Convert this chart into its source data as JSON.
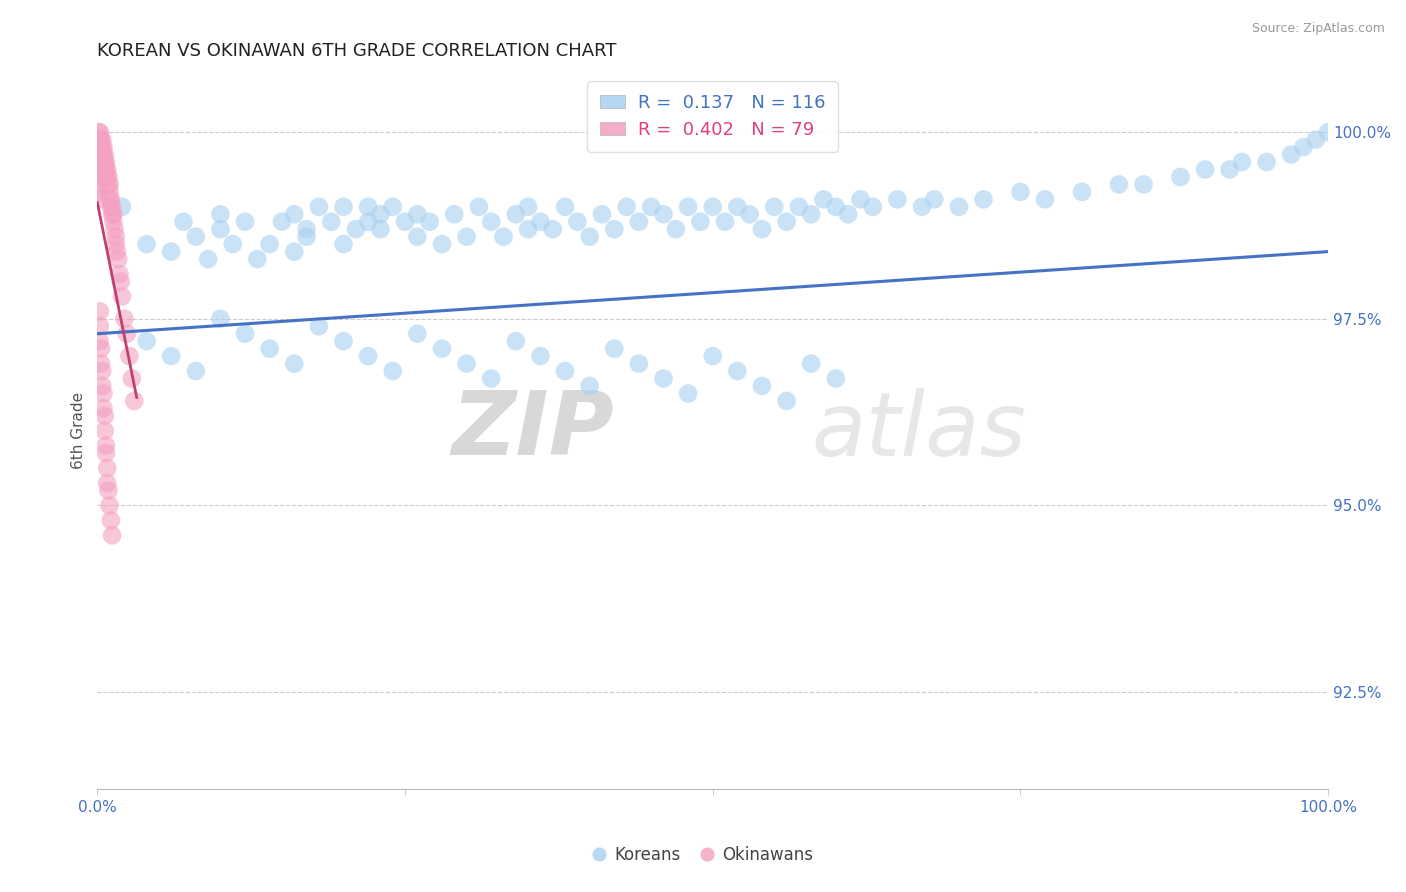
{
  "title": "KOREAN VS OKINAWAN 6TH GRADE CORRELATION CHART",
  "source_text": "Source: ZipAtlas.com",
  "ylabel": "6th Grade",
  "xlim": [
    0.0,
    1.0
  ],
  "ylim": [
    0.912,
    1.008
  ],
  "yticks": [
    0.925,
    0.95,
    0.975,
    1.0
  ],
  "ytick_labels": [
    "92.5%",
    "95.0%",
    "97.5%",
    "100.0%"
  ],
  "blue_color": "#A8D0F0",
  "pink_color": "#F4A0C0",
  "trendline_color": "#4472C4",
  "pink_trendline_color": "#C04070",
  "background_color": "#FFFFFF",
  "grid_color": "#CCCCCC",
  "legend_blue_R": "0.137",
  "legend_blue_N": "116",
  "legend_pink_R": "0.402",
  "legend_pink_N": "79",
  "legend_label_blue": "Koreans",
  "legend_label_pink": "Okinawans",
  "watermark_text": "ZIPatlas",
  "title_fontsize": 13,
  "axis_label_fontsize": 11,
  "tick_fontsize": 11,
  "blue_scatter_x": [
    0.02,
    0.04,
    0.06,
    0.07,
    0.08,
    0.09,
    0.1,
    0.1,
    0.11,
    0.12,
    0.13,
    0.14,
    0.15,
    0.16,
    0.16,
    0.17,
    0.17,
    0.18,
    0.19,
    0.2,
    0.2,
    0.21,
    0.22,
    0.22,
    0.23,
    0.23,
    0.24,
    0.25,
    0.26,
    0.26,
    0.27,
    0.28,
    0.29,
    0.3,
    0.31,
    0.32,
    0.33,
    0.34,
    0.35,
    0.35,
    0.36,
    0.37,
    0.38,
    0.39,
    0.4,
    0.41,
    0.42,
    0.43,
    0.44,
    0.45,
    0.46,
    0.47,
    0.48,
    0.49,
    0.5,
    0.51,
    0.52,
    0.53,
    0.54,
    0.55,
    0.56,
    0.57,
    0.58,
    0.59,
    0.6,
    0.61,
    0.62,
    0.63,
    0.65,
    0.67,
    0.68,
    0.7,
    0.72,
    0.75,
    0.77,
    0.8,
    0.83,
    0.85,
    0.88,
    0.9,
    0.92,
    0.93,
    0.95,
    0.97,
    0.98,
    0.99,
    1.0,
    0.04,
    0.06,
    0.08,
    0.1,
    0.12,
    0.14,
    0.16,
    0.18,
    0.2,
    0.22,
    0.24,
    0.26,
    0.28,
    0.3,
    0.32,
    0.34,
    0.36,
    0.38,
    0.4,
    0.42,
    0.44,
    0.46,
    0.48,
    0.5,
    0.52,
    0.54,
    0.56,
    0.58,
    0.6
  ],
  "blue_scatter_y": [
    0.99,
    0.985,
    0.984,
    0.988,
    0.986,
    0.983,
    0.987,
    0.989,
    0.985,
    0.988,
    0.983,
    0.985,
    0.988,
    0.984,
    0.989,
    0.987,
    0.986,
    0.99,
    0.988,
    0.985,
    0.99,
    0.987,
    0.988,
    0.99,
    0.989,
    0.987,
    0.99,
    0.988,
    0.989,
    0.986,
    0.988,
    0.985,
    0.989,
    0.986,
    0.99,
    0.988,
    0.986,
    0.989,
    0.987,
    0.99,
    0.988,
    0.987,
    0.99,
    0.988,
    0.986,
    0.989,
    0.987,
    0.99,
    0.988,
    0.99,
    0.989,
    0.987,
    0.99,
    0.988,
    0.99,
    0.988,
    0.99,
    0.989,
    0.987,
    0.99,
    0.988,
    0.99,
    0.989,
    0.991,
    0.99,
    0.989,
    0.991,
    0.99,
    0.991,
    0.99,
    0.991,
    0.99,
    0.991,
    0.992,
    0.991,
    0.992,
    0.993,
    0.993,
    0.994,
    0.995,
    0.995,
    0.996,
    0.996,
    0.997,
    0.998,
    0.999,
    1.0,
    0.972,
    0.97,
    0.968,
    0.975,
    0.973,
    0.971,
    0.969,
    0.974,
    0.972,
    0.97,
    0.968,
    0.973,
    0.971,
    0.969,
    0.967,
    0.972,
    0.97,
    0.968,
    0.966,
    0.971,
    0.969,
    0.967,
    0.965,
    0.97,
    0.968,
    0.966,
    0.964,
    0.969,
    0.967
  ],
  "pink_scatter_x": [
    0.001,
    0.001,
    0.001,
    0.001,
    0.001,
    0.001,
    0.001,
    0.001,
    0.001,
    0.001,
    0.002,
    0.002,
    0.002,
    0.002,
    0.002,
    0.002,
    0.003,
    0.003,
    0.003,
    0.003,
    0.004,
    0.004,
    0.004,
    0.004,
    0.005,
    0.005,
    0.005,
    0.005,
    0.006,
    0.006,
    0.006,
    0.007,
    0.007,
    0.007,
    0.008,
    0.008,
    0.009,
    0.009,
    0.01,
    0.01,
    0.01,
    0.011,
    0.011,
    0.012,
    0.012,
    0.013,
    0.013,
    0.014,
    0.015,
    0.015,
    0.016,
    0.017,
    0.018,
    0.019,
    0.02,
    0.022,
    0.024,
    0.026,
    0.028,
    0.03,
    0.002,
    0.002,
    0.002,
    0.003,
    0.003,
    0.004,
    0.004,
    0.005,
    0.005,
    0.006,
    0.006,
    0.007,
    0.007,
    0.008,
    0.008,
    0.009,
    0.01,
    0.011,
    0.012
  ],
  "pink_scatter_y": [
    1.0,
    0.999,
    0.998,
    0.997,
    0.996,
    0.995,
    0.994,
    0.993,
    0.992,
    0.991,
    1.0,
    0.999,
    0.998,
    0.997,
    0.996,
    0.995,
    0.999,
    0.998,
    0.997,
    0.996,
    0.999,
    0.998,
    0.997,
    0.996,
    0.998,
    0.997,
    0.996,
    0.995,
    0.997,
    0.996,
    0.995,
    0.996,
    0.995,
    0.994,
    0.995,
    0.994,
    0.994,
    0.993,
    0.993,
    0.992,
    0.991,
    0.991,
    0.99,
    0.99,
    0.989,
    0.989,
    0.988,
    0.987,
    0.986,
    0.985,
    0.984,
    0.983,
    0.981,
    0.98,
    0.978,
    0.975,
    0.973,
    0.97,
    0.967,
    0.964,
    0.976,
    0.974,
    0.972,
    0.971,
    0.969,
    0.968,
    0.966,
    0.965,
    0.963,
    0.962,
    0.96,
    0.958,
    0.957,
    0.955,
    0.953,
    0.952,
    0.95,
    0.948,
    0.946
  ],
  "trendline_x0": 0.0,
  "trendline_x1": 1.0,
  "trendline_y0": 0.973,
  "trendline_y1": 0.984
}
